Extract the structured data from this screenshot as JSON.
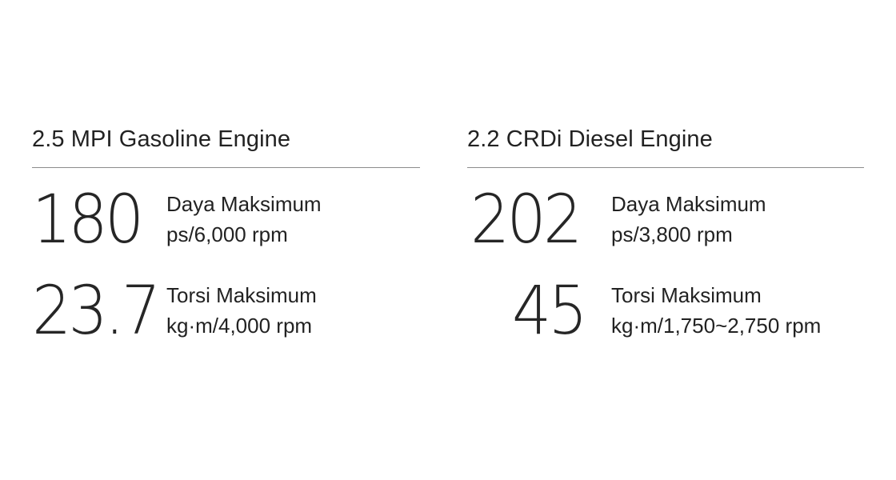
{
  "engines": [
    {
      "title": "2.5 MPI Gasoline Engine",
      "specs": [
        {
          "value": "180",
          "label": "Daya Maksimum",
          "unit": "ps/6,000 rpm"
        },
        {
          "value": "23.7",
          "label": "Torsi Maksimum",
          "unit": "kg·m/4,000 rpm"
        }
      ]
    },
    {
      "title": "2.2 CRDi Diesel Engine",
      "specs": [
        {
          "value": "202",
          "label": "Daya Maksimum",
          "unit": "ps/3,800 rpm"
        },
        {
          "value": "45",
          "label": "Torsi Maksimum",
          "unit": "kg·m/1,750~2,750 rpm"
        }
      ]
    }
  ],
  "colors": {
    "text": "#222222",
    "divider": "#8c8c8c",
    "background": "#ffffff"
  }
}
